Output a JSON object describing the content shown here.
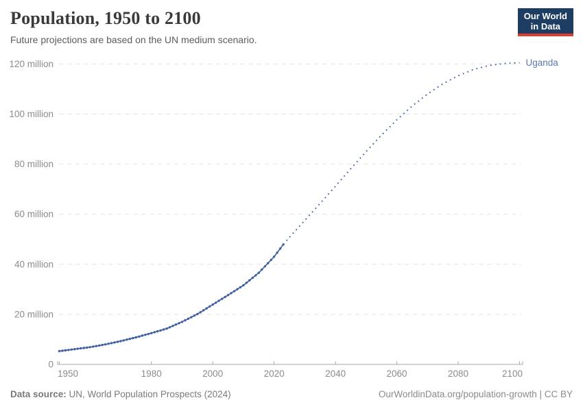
{
  "header": {
    "title": "Population, 1950 to 2100",
    "subtitle": "Future projections are based on the UN medium scenario.",
    "logo": {
      "line1": "Our World",
      "line2": "in Data"
    }
  },
  "footer": {
    "source_label": "Data source:",
    "source_text": " UN, World Population Prospects (2024)",
    "link_text": "OurWorldinData.org/population-growth | CC BY"
  },
  "colors": {
    "series": "#4060a2",
    "series_label": "#5b79ad",
    "grid": "#e2e2e2",
    "axis": "#a5a5a5",
    "tick_label": "#8b8b8b",
    "logo_bg": "#1d3d63",
    "logo_red": "#dc3e32"
  },
  "chart_data": {
    "type": "line",
    "title": "Population, 1950 to 2100",
    "subtitle": "Future projections are based on the UN medium scenario.",
    "entity_label": "Uganda",
    "unit": "million people",
    "xlim": [
      1950,
      2100
    ],
    "ylim": [
      0,
      123
    ],
    "grid": "dashed-horizontal",
    "legend_position": "end-of-line-label",
    "x_ticks": [
      1950,
      1980,
      2000,
      2020,
      2040,
      2060,
      2080,
      2100
    ],
    "y_ticks": [
      {
        "value": 0,
        "label": "0"
      },
      {
        "value": 20,
        "label": "20 million"
      },
      {
        "value": 40,
        "label": "40 million"
      },
      {
        "value": 60,
        "label": "60 million"
      },
      {
        "value": 80,
        "label": "80 million"
      },
      {
        "value": 100,
        "label": "100 million"
      },
      {
        "value": 120,
        "label": "120 million"
      }
    ],
    "series": [
      {
        "name": "Uganda (historical)",
        "style": "solid-with-markers",
        "x": [
          1950,
          1955,
          1960,
          1965,
          1970,
          1975,
          1980,
          1985,
          1990,
          1995,
          2000,
          2005,
          2010,
          2015,
          2020,
          2023
        ],
        "y": [
          5.3,
          6.1,
          6.9,
          8.0,
          9.3,
          10.8,
          12.5,
          14.3,
          17.0,
          20.1,
          23.9,
          27.7,
          31.6,
          36.6,
          43.0,
          47.9
        ]
      },
      {
        "name": "Uganda (UN medium projection)",
        "style": "dotted",
        "x": [
          2023,
          2025,
          2030,
          2035,
          2040,
          2045,
          2050,
          2055,
          2060,
          2065,
          2070,
          2075,
          2080,
          2085,
          2090,
          2095,
          2100
        ],
        "y": [
          47.9,
          50.8,
          57.5,
          64.3,
          71.2,
          78.2,
          85.0,
          91.6,
          97.7,
          103.2,
          108.0,
          112.1,
          115.3,
          117.8,
          119.4,
          120.2,
          120.5
        ]
      }
    ]
  }
}
